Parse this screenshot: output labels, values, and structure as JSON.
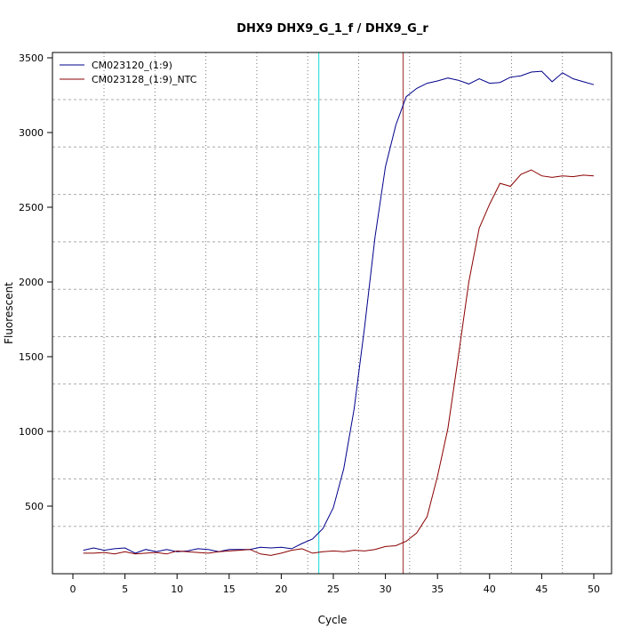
{
  "chart_data": {
    "type": "line",
    "title": "DHX9  DHX9_G_1_f / DHX9_G_r",
    "xlabel": "Cycle",
    "ylabel": "Fluorescent",
    "xlim": [
      -2,
      52
    ],
    "ylim": [
      0,
      3500
    ],
    "xticks": [
      0,
      5,
      10,
      15,
      20,
      25,
      30,
      35,
      40,
      45,
      50
    ],
    "yticks": [
      500,
      1000,
      1500,
      2000,
      2500,
      3000,
      3500
    ],
    "grid": true,
    "legend": "top-left",
    "x": [
      1,
      2,
      3,
      4,
      5,
      6,
      7,
      8,
      9,
      10,
      11,
      12,
      13,
      14,
      15,
      16,
      17,
      18,
      19,
      20,
      21,
      22,
      23,
      24,
      25,
      26,
      27,
      28,
      29,
      30,
      31,
      32,
      33,
      34,
      35,
      36,
      37,
      38,
      39,
      40,
      41,
      42,
      43,
      44,
      45,
      46,
      47,
      48,
      49,
      50
    ],
    "series": [
      {
        "name": "CM023120_(1:9)",
        "color": "#00008B",
        "values": [
          205,
          220,
          205,
          215,
          220,
          185,
          210,
          195,
          210,
          195,
          200,
          215,
          210,
          195,
          210,
          210,
          210,
          225,
          220,
          225,
          215,
          250,
          280,
          350,
          490,
          750,
          1150,
          1700,
          2300,
          2770,
          3050,
          3240,
          3295,
          3330,
          3345,
          3365,
          3350,
          3325,
          3360,
          3330,
          3335,
          3370,
          3380,
          3405,
          3410,
          3340,
          3400,
          3360,
          3340,
          3320
        ]
      },
      {
        "name": "CM023128_(1:9)_NTC",
        "color": "#8B0000",
        "values": [
          185,
          185,
          190,
          180,
          195,
          180,
          185,
          190,
          180,
          200,
          195,
          190,
          185,
          195,
          200,
          205,
          210,
          180,
          170,
          185,
          205,
          215,
          185,
          195,
          200,
          195,
          205,
          200,
          210,
          230,
          235,
          265,
          320,
          430,
          700,
          1020,
          1500,
          2000,
          2360,
          2520,
          2660,
          2640,
          2720,
          2750,
          2710,
          2700,
          2710,
          2705,
          2715,
          2710
        ]
      }
    ],
    "vlines": [
      {
        "x": 23.6,
        "color": "#40E0E0"
      },
      {
        "x": 31.7,
        "color": "#B05050"
      }
    ]
  }
}
